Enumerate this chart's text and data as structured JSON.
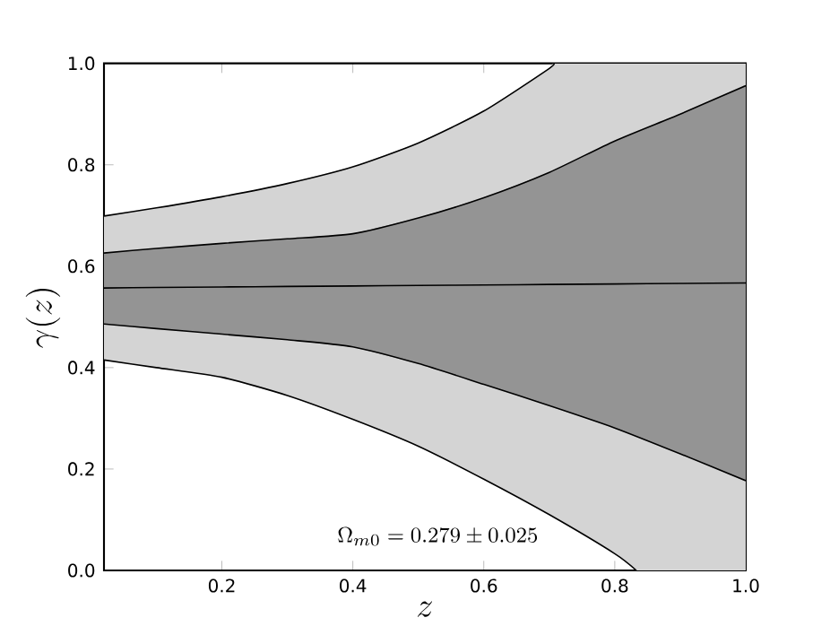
{
  "chart_data": {
    "type": "line",
    "xlabel": "z",
    "ylabel": "\\gamma(z)",
    "xlim": [
      0.02,
      1.0
    ],
    "ylim": [
      0.0,
      1.0
    ],
    "xticks": [
      0.2,
      0.4,
      0.6,
      0.8,
      {
        "value": 1.0,
        "label": "1.0"
      }
    ],
    "yticks": [
      {
        "value": 0.0,
        "label": "0.0"
      },
      0.2,
      0.4,
      0.6,
      0.8,
      {
        "value": 1.0,
        "label": "1.0"
      }
    ],
    "grid": false,
    "annotations": [
      "\\Omega_{m0}=0.279\\pm0.025"
    ],
    "series": [
      {
        "color": "#000000",
        "x": [
          0.02,
          0.1,
          0.2,
          0.3,
          0.4,
          0.5,
          0.6,
          0.7,
          0.706,
          0.8,
          0.833,
          0.9,
          1.0
        ],
        "values": [
          0.699,
          0.715,
          0.737,
          0.763,
          0.796,
          0.843,
          0.906,
          0.99,
          1.0,
          null,
          null,
          null,
          null
        ],
        "upper": [
          0.699,
          0.715,
          0.737,
          0.763,
          0.796,
          0.843,
          0.906,
          0.99,
          1.0,
          1.0,
          1.0,
          1.0,
          1.0
        ],
        "lower": [
          0.415,
          0.4,
          0.381,
          0.345,
          0.298,
          0.245,
          0.18,
          0.11,
          0.105,
          0.033,
          0.0,
          0.0,
          0.0
        ]
      },
      {
        "color": "#000000",
        "x": [
          0.02,
          0.1,
          0.2,
          0.3,
          0.4,
          0.5,
          0.6,
          0.7,
          0.8,
          0.9,
          1.0
        ],
        "values": [
          0.557,
          0.558,
          0.559,
          0.56,
          0.561,
          0.562,
          0.563,
          0.564,
          0.565,
          0.566,
          0.567
        ],
        "upper": [
          0.626,
          0.635,
          0.645,
          0.654,
          0.664,
          0.695,
          0.735,
          0.785,
          0.847,
          0.9,
          0.956
        ],
        "lower": [
          0.486,
          0.477,
          0.466,
          0.455,
          0.441,
          0.408,
          0.367,
          0.325,
          0.281,
          0.23,
          0.177
        ]
      },
      {
        "color": "#000000",
        "x": [
          0.02,
          0.1,
          0.2,
          0.3,
          0.4,
          0.5,
          0.6,
          0.7,
          0.8,
          0.9,
          1.0
        ],
        "values": [
          0.626,
          0.635,
          0.645,
          0.654,
          0.664,
          0.695,
          0.735,
          0.785,
          0.847,
          0.9,
          0.956
        ]
      },
      {
        "color": "#000000",
        "x": [
          0.02,
          0.1,
          0.2,
          0.3,
          0.4,
          0.5,
          0.6,
          0.7,
          0.8,
          0.9,
          1.0
        ],
        "values": [
          0.486,
          0.477,
          0.466,
          0.455,
          0.441,
          0.408,
          0.367,
          0.325,
          0.281,
          0.23,
          0.177
        ]
      },
      {
        "color": "#000000",
        "x": [
          0.02,
          0.1,
          0.2,
          0.3,
          0.4,
          0.5,
          0.6,
          0.7,
          0.8,
          0.833
        ],
        "values": [
          0.415,
          0.4,
          0.381,
          0.345,
          0.298,
          0.245,
          0.18,
          0.11,
          0.033,
          0.0
        ]
      }
    ]
  }
}
